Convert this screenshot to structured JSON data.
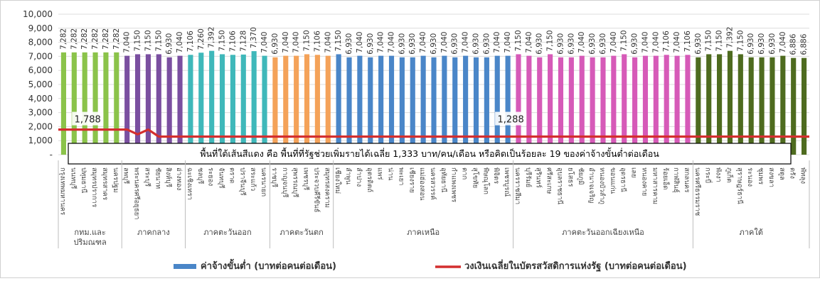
{
  "chart_data": {
    "type": "bar",
    "ylim": [
      0,
      10000
    ],
    "yticks": [
      {
        "value": 0,
        "label": "-"
      },
      {
        "value": 1000,
        "label": "1,000"
      },
      {
        "value": 2000,
        "label": "2,000"
      },
      {
        "value": 3000,
        "label": "3,000"
      },
      {
        "value": 4000,
        "label": "4,000"
      },
      {
        "value": 5000,
        "label": "5,000"
      },
      {
        "value": 6000,
        "label": "6,000"
      },
      {
        "value": 7000,
        "label": "7,000"
      },
      {
        "value": 8000,
        "label": "8,000"
      },
      {
        "value": 9000,
        "label": "9,000"
      },
      {
        "value": 10000,
        "label": "10,000"
      }
    ],
    "groups": [
      {
        "name": "กทม.และปริมณฑล",
        "color": "#8bc34a",
        "values": [
          7282,
          7282,
          7282,
          7282,
          7282,
          7282
        ],
        "labels": [
          "กรุงเทพมหานคร",
          "นนทบุรี",
          "ปทุมธานี",
          "สมุทรปราการ",
          "สมุทรสาคร",
          "นครปฐม"
        ]
      },
      {
        "name": "ภาคกลาง",
        "color": "#7a4fa0",
        "values": [
          7040,
          7150,
          7150,
          7150,
          6930,
          7040
        ],
        "labels": [
          "ลพบุรี",
          "พระนครศรีอยุธยา",
          "สระบุรี",
          "ชัยนาท",
          "สิงห์บุรี",
          "อ่างทอง"
        ]
      },
      {
        "name": "ภาคตะวันออก",
        "color": "#3fb8ba",
        "values": [
          7106,
          7260,
          7392,
          7150,
          7106,
          7128,
          7370,
          7040
        ],
        "labels": [
          "ฉะเชิงเทรา",
          "ชลบุรี",
          "ระยอง",
          "จันทบุรี",
          "ตราด",
          "ปราจีนบุรี",
          "สระแก้ว",
          "นครนายก"
        ]
      },
      {
        "name": "ภาคตะวันตก",
        "color": "#f4a259",
        "values": [
          6930,
          7040,
          7040,
          7150,
          7106,
          7040
        ],
        "labels": [
          "ราชบุรี",
          "กาญจนบุรี",
          "สุพรรณบุรี",
          "เพชรบุรี",
          "ประจวบคีรีขันธ์",
          "สมุทรสงคราม"
        ]
      },
      {
        "name": "ภาคเหนือ",
        "color": "#4a86c8",
        "values": [
          7150,
          6930,
          7040,
          6930,
          7040,
          7040,
          6930,
          6930,
          7040,
          6930,
          7040,
          6930,
          7040,
          6930,
          6930,
          7040,
          7040
        ],
        "labels": [
          "เชียงใหม่",
          "ลำพูน",
          "ลำปาง",
          "อุตรดิตถ์",
          "แพร่",
          "น่าน",
          "พะเยา",
          "เชียงราย",
          "แม่ฮ่องสอน",
          "นครสวรรค์",
          "อุทัยธานี",
          "กำแพงเพชร",
          "ตาก",
          "สุโขทัย",
          "พิษณุโลก",
          "พิจิตร",
          "เพชรบูรณ์"
        ]
      },
      {
        "name": "ภาคตะวันออกเฉียงเหนือ",
        "color": "#d65ab8",
        "values": [
          7150,
          7040,
          6930,
          7150,
          6930,
          6930,
          7040,
          6930,
          6930,
          7040,
          7150,
          6930,
          7040,
          7040,
          7106,
          7040,
          7106
        ],
        "labels": [
          "นครราชสีมา",
          "บุรีรัมย์",
          "สุรินทร์",
          "ศรีสะเกษ",
          "อุบลราชธานี",
          "ยโสธร",
          "ชัยภูมิ",
          "อำนาจเจริญ",
          "หนองบัวลำภู",
          "ขอนแก่น",
          "อุดรธานี",
          "เลย",
          "หนองคาย",
          "มหาสารคาม",
          "ร้อยเอ็ด",
          "กาฬสินธุ์",
          "สกลนคร"
        ]
      },
      {
        "name": "ภาคใต้",
        "color": "#4e6b1f",
        "values": [
          6930,
          7150,
          7150,
          7392,
          7150,
          6930,
          6930,
          6930,
          7040,
          6886,
          6886
        ],
        "labels": [
          "นครศรีธรรมราช",
          "กระบี่",
          "พังงา",
          "ภูเก็ต",
          "สุราษฎร์ธานี",
          "ระนอง",
          "ชุมพร",
          "สงขลา",
          "สตูล",
          "ตรัง",
          "พัทลุง"
        ]
      }
    ],
    "line": {
      "name": "วงเงินเฉลี่ยในบัตรสวัสดิการแห่งรัฐ (บาทต่อคนต่อเดือน)",
      "color": "#d32f2f",
      "values_by_position": [
        {
          "index": 0,
          "value": 1788
        },
        {
          "index": 6,
          "value": 1788
        },
        {
          "index": 7,
          "value": 1450
        },
        {
          "index": 8,
          "value": 1788
        },
        {
          "index": 9,
          "value": 1288
        },
        {
          "index": 70,
          "value": 1288
        }
      ],
      "annotations": [
        {
          "index": 2,
          "label": "1,788"
        },
        {
          "index": 42,
          "label": "1,288"
        }
      ]
    },
    "bar_legend": {
      "name": "ค่าจ้างขั้นต่ำ (บาทต่อคนต่อเดือน)",
      "color": "#4a86c8"
    },
    "callout": "พื้นที่ใต้เส้นสีแดง คือ พื้นที่ที่รัฐช่วยเพิ่มรายได้เฉลี่ย 1,333 บาท/คน/เดือน หรือคิดเป็นร้อยละ 19 ของค่าจ้างขั้นต่ำต่อเดือน",
    "group_label_lines": [
      [
        "กทม.และ",
        "ปริมณฑล"
      ],
      [
        "ภาคกลาง"
      ],
      [
        "ภาคตะวันออก"
      ],
      [
        "ภาคตะวันตก"
      ],
      [
        "ภาคเหนือ"
      ],
      [
        "ภาคตะวันออกเฉียงเหนือ"
      ],
      [
        "ภาคใต้"
      ]
    ]
  }
}
